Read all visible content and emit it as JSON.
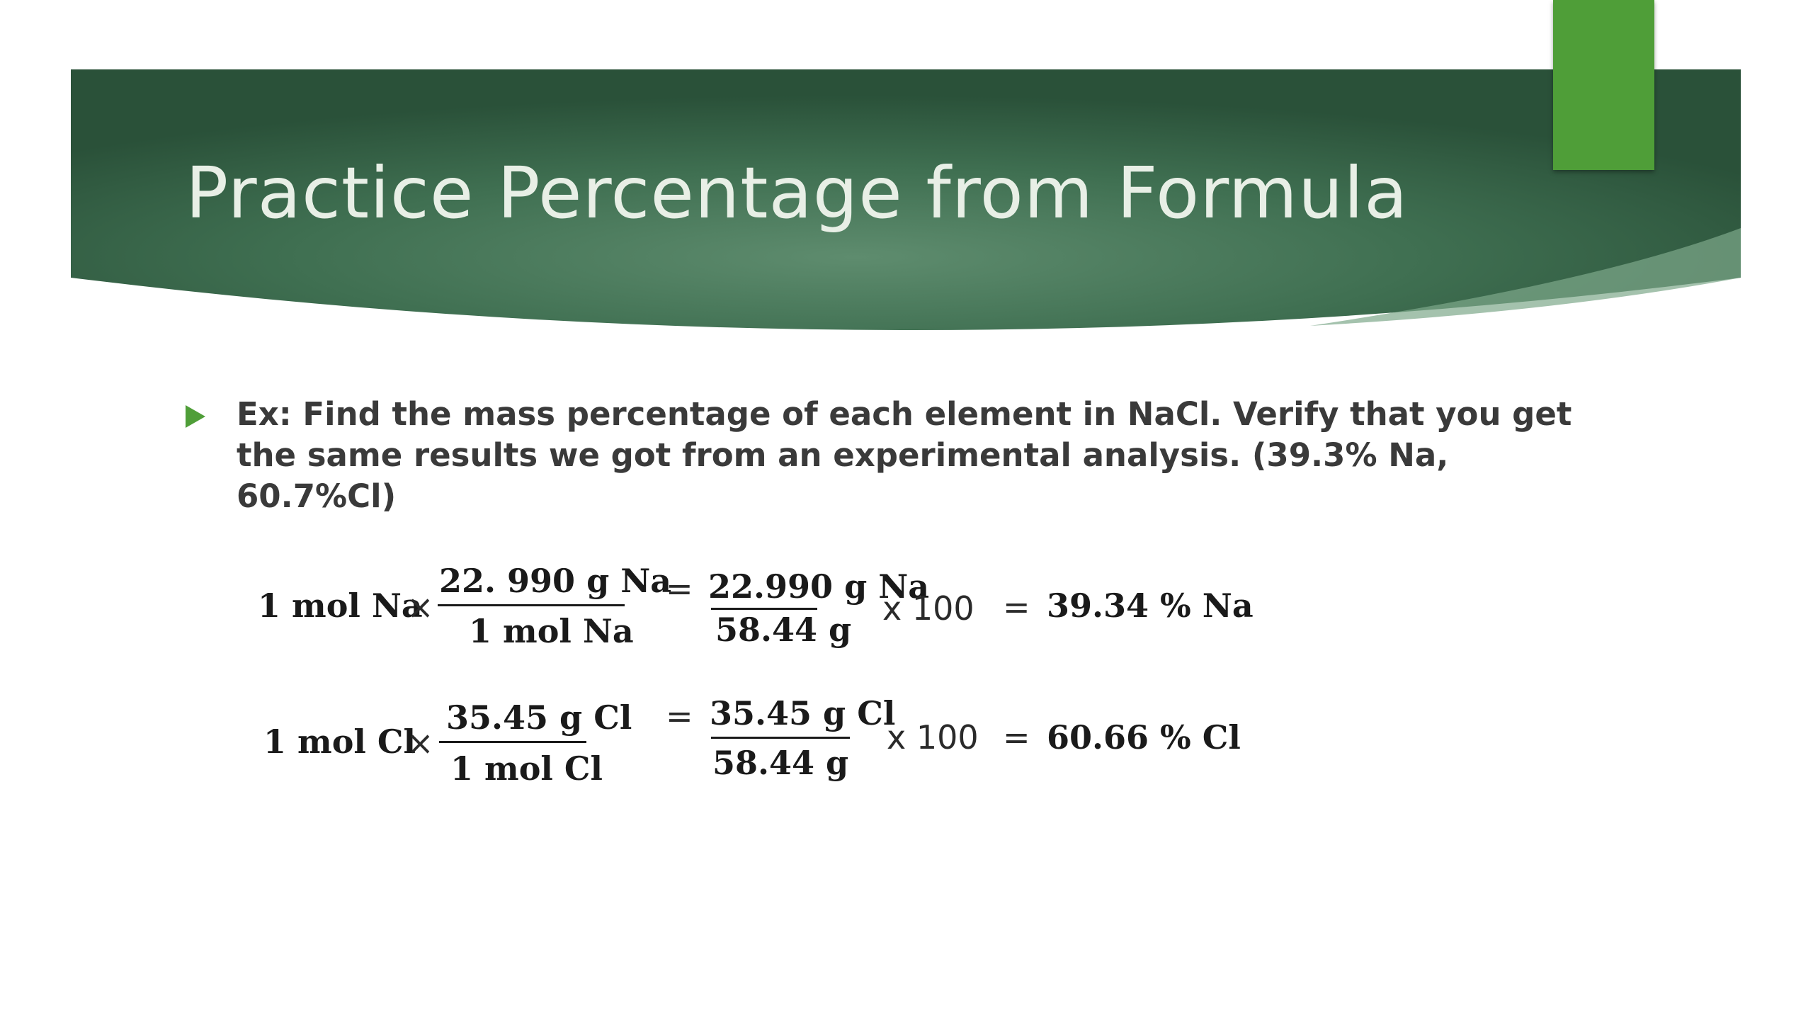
{
  "slide": {
    "title": "Practice Percentage from Formula",
    "bullet_text": "Ex: Find the mass percentage of each element in NaCl. Verify that you get the same results we got from an experimental analysis. (39.3% Na, 60.7%Cl)",
    "colors": {
      "banner_dark": "#2d5a3f",
      "banner_light": "#5e8c6e",
      "accent": "#4f9e38",
      "bullet": "#4f9e38"
    },
    "equations": [
      {
        "start": "1  mol Na",
        "times": "×",
        "numerator": "22. 990 g Na",
        "denominator": "1 mol Na",
        "equals1": "=",
        "result_numerator": "22.990 g Na",
        "result_denominator": "58.44 g",
        "multiplier": "x 100",
        "equals2": "=",
        "result": "39.34  % Na"
      },
      {
        "start": "1  mol Cl",
        "times": "×",
        "numerator": "35.45 g Cl",
        "denominator": "1  mol Cl",
        "equals1": "=",
        "result_numerator": "35.45 g Cl",
        "result_denominator": "58.44 g",
        "multiplier": "x 100",
        "equals2": "=",
        "result": "60.66  % Cl"
      }
    ]
  }
}
